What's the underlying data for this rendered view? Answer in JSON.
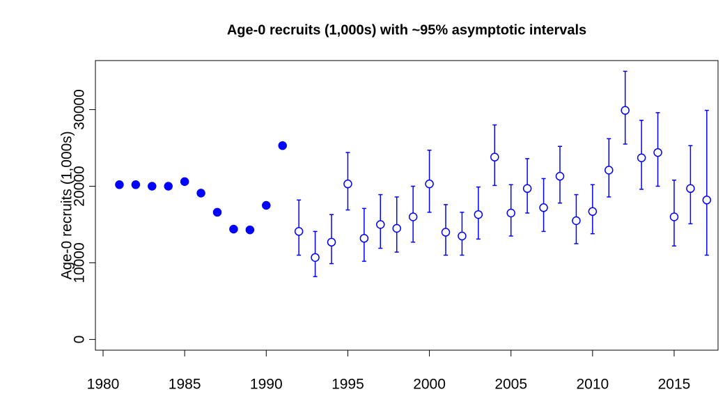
{
  "chart_data": {
    "type": "scatter",
    "title": "Age-0 recruits (1,000s) with ~95% asymptotic intervals",
    "y_label": "Age-0 recruits (1,000s)",
    "xlim": [
      1979.53,
      2017.69
    ],
    "xticks": [
      1980,
      1985,
      1990,
      1995,
      2000,
      2005,
      2010,
      2015
    ],
    "ylim": [
      -1400,
      36400
    ],
    "yticks": [
      0,
      10000,
      20000,
      30000
    ],
    "series": [
      {
        "color": "#0000ff",
        "marker": "filled",
        "x": [
          1981,
          1982,
          1983,
          1984,
          1985,
          1986,
          1987,
          1988,
          1989,
          1990,
          1991
        ],
        "values": [
          20200,
          20200,
          20000,
          20000,
          20600,
          19100,
          16600,
          14400,
          14300,
          17500,
          25300
        ]
      },
      {
        "color": "#0000ff",
        "marker": "open",
        "x": [
          1992,
          1993,
          1994,
          1995,
          1996,
          1997,
          1998,
          1999,
          2000,
          2001,
          2002,
          2003,
          2004,
          2005,
          2006,
          2007,
          2008,
          2009,
          2010,
          2011,
          2012,
          2013,
          2014,
          2015,
          2016,
          2017
        ],
        "values": [
          14100,
          10700,
          12700,
          20300,
          13200,
          15000,
          14500,
          16000,
          20300,
          14000,
          13500,
          16300,
          23800,
          16500,
          19700,
          17200,
          21300,
          15500,
          16700,
          22100,
          29900,
          23700,
          24400,
          16000,
          19700,
          18200
        ],
        "lower": [
          11000,
          8200,
          9900,
          16900,
          10200,
          11900,
          11400,
          12700,
          16600,
          11000,
          11000,
          13100,
          20100,
          13500,
          16500,
          14100,
          17800,
          12500,
          13800,
          18600,
          25500,
          19600,
          20000,
          12200,
          15100,
          11000
        ],
        "upper": [
          18200,
          14100,
          16300,
          24400,
          17100,
          18900,
          18600,
          20000,
          24700,
          17600,
          16600,
          19900,
          28000,
          20200,
          23600,
          21000,
          25200,
          18900,
          20200,
          26200,
          35000,
          28600,
          29600,
          20800,
          25300,
          29900
        ]
      }
    ]
  }
}
